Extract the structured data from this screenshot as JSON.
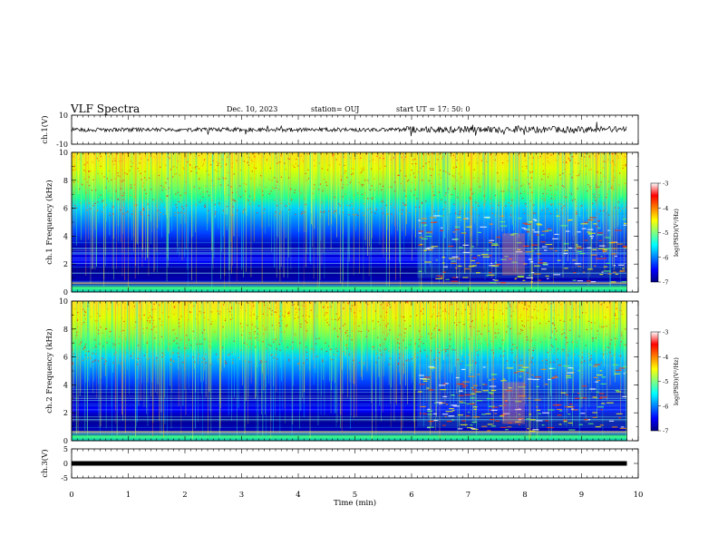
{
  "header": {
    "title": "VLF Spectra",
    "date": "Dec. 10, 2023",
    "station": "station= OUJ",
    "start": "start  UT  =   17: 50: 0"
  },
  "chart_data": [
    {
      "type": "line",
      "panel": "ch1-waveform",
      "ylabel": "ch.1(V)",
      "ylim": [
        -10,
        10
      ],
      "y_ticks": [
        "10",
        "-10"
      ],
      "xlim": [
        0,
        9.8
      ],
      "baseline": 0,
      "series_color": "#000000"
    },
    {
      "type": "heatmap",
      "panel": "ch1-spectrogram",
      "ylabel": "ch.1  Frequency  (kHz)",
      "ylim": [
        0,
        10
      ],
      "y_ticks": [
        "0",
        "2",
        "4",
        "6",
        "8",
        "10"
      ],
      "xlim": [
        0,
        9.8
      ],
      "colorbar": {
        "label": "log(PSD)(V²/Hz)",
        "range": [
          -7,
          -3
        ],
        "ticks": [
          "-3",
          "-4",
          "-5",
          "-6",
          "-7"
        ],
        "colors": [
          "#000080",
          "#0000ff",
          "#0080ff",
          "#00ffff",
          "#80ff80",
          "#ffff00",
          "#ff8000",
          "#ff0000",
          "#ffffff"
        ]
      }
    },
    {
      "type": "heatmap",
      "panel": "ch2-spectrogram",
      "ylabel": "ch.2  Frequency  (kHz)",
      "ylim": [
        0,
        10
      ],
      "y_ticks": [
        "0",
        "2",
        "4",
        "6",
        "8",
        "10"
      ],
      "xlim": [
        0,
        9.8
      ],
      "colorbar": {
        "label": "log(PSD)(V²/Hz)",
        "range": [
          -7,
          -3
        ],
        "ticks": [
          "-3",
          "-4",
          "-5",
          "-6",
          "-7"
        ],
        "colors": [
          "#000080",
          "#0000ff",
          "#0080ff",
          "#00ffff",
          "#80ff80",
          "#ffff00",
          "#ff8000",
          "#ff0000",
          "#ffffff"
        ]
      }
    },
    {
      "type": "line",
      "panel": "ch3-waveform",
      "ylabel": "ch.3(V)",
      "ylim": [
        -5,
        5
      ],
      "y_ticks": [
        "5",
        "0",
        "-5"
      ],
      "xlim": [
        0,
        9.8
      ],
      "baseline": 0,
      "series_color": "#000000"
    }
  ],
  "x_axis": {
    "label": "Time  (min)",
    "range": [
      0,
      10
    ],
    "ticks": [
      "0",
      "1",
      "2",
      "3",
      "4",
      "5",
      "6",
      "7",
      "8",
      "9",
      "10"
    ]
  }
}
